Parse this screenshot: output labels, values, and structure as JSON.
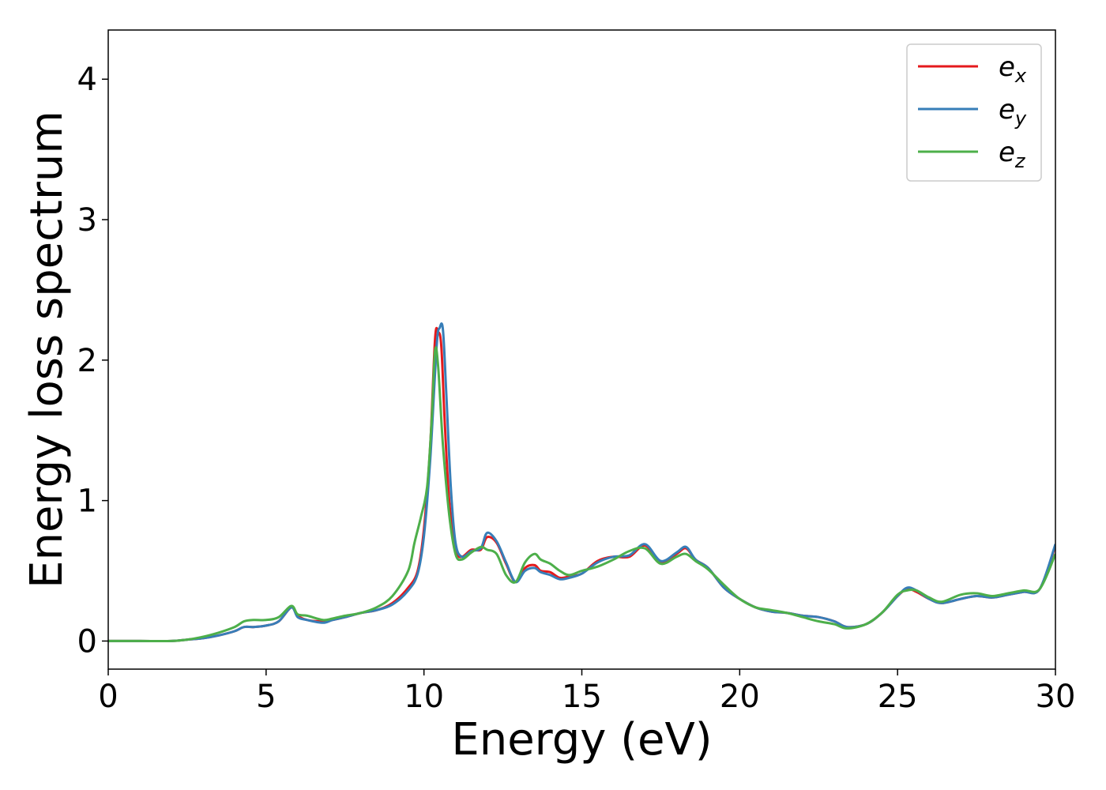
{
  "chart_data": {
    "type": "line",
    "title": "",
    "xlabel": "Energy (eV)",
    "ylabel": "Energy loss spectrum",
    "xlim": [
      0,
      30
    ],
    "ylim": [
      -0.2,
      4.35
    ],
    "xticks": [
      0,
      5,
      10,
      15,
      20,
      25,
      30
    ],
    "yticks": [
      0,
      1,
      2,
      3,
      4
    ],
    "grid": false,
    "legend_position": "top-right",
    "series": [
      {
        "name": "e",
        "subscript": "x",
        "color": "#e41a1c",
        "x": [
          0,
          1,
          2,
          2.5,
          3,
          3.5,
          4,
          4.3,
          4.6,
          5,
          5.4,
          5.8,
          6,
          6.3,
          6.8,
          7.1,
          7.5,
          8,
          8.5,
          9,
          9.5,
          9.8,
          10,
          10.2,
          10.35,
          10.45,
          10.55,
          10.65,
          10.8,
          11,
          11.2,
          11.5,
          11.8,
          12,
          12.3,
          12.6,
          12.9,
          13.2,
          13.5,
          13.7,
          14,
          14.3,
          14.6,
          15,
          15.5,
          16,
          16.5,
          17,
          17.5,
          18,
          18.3,
          18.6,
          19,
          19.5,
          20,
          20.5,
          21,
          21.5,
          22,
          22.5,
          23,
          23.4,
          24,
          24.5,
          25,
          25.3,
          25.6,
          26,
          26.4,
          27,
          27.5,
          28,
          28.5,
          29,
          29.5,
          30
        ],
        "y": [
          0,
          0,
          0,
          0.01,
          0.02,
          0.04,
          0.07,
          0.1,
          0.1,
          0.11,
          0.14,
          0.24,
          0.18,
          0.15,
          0.14,
          0.15,
          0.17,
          0.2,
          0.22,
          0.27,
          0.38,
          0.5,
          0.8,
          1.4,
          2.15,
          2.2,
          2.1,
          1.6,
          1.0,
          0.65,
          0.6,
          0.65,
          0.65,
          0.74,
          0.7,
          0.55,
          0.42,
          0.52,
          0.54,
          0.5,
          0.49,
          0.45,
          0.46,
          0.48,
          0.57,
          0.6,
          0.6,
          0.68,
          0.56,
          0.62,
          0.66,
          0.58,
          0.52,
          0.38,
          0.3,
          0.24,
          0.21,
          0.2,
          0.18,
          0.17,
          0.14,
          0.1,
          0.12,
          0.2,
          0.32,
          0.37,
          0.35,
          0.3,
          0.27,
          0.3,
          0.32,
          0.31,
          0.33,
          0.35,
          0.37,
          0.68
        ]
      },
      {
        "name": "e",
        "subscript": "y",
        "color": "#377eb8",
        "x": [
          0,
          1,
          2,
          2.5,
          3,
          3.5,
          4,
          4.3,
          4.6,
          5,
          5.4,
          5.8,
          6,
          6.3,
          6.8,
          7.1,
          7.5,
          8,
          8.5,
          9,
          9.5,
          9.8,
          10,
          10.2,
          10.4,
          10.5,
          10.6,
          10.7,
          10.85,
          11,
          11.2,
          11.5,
          11.8,
          12,
          12.3,
          12.6,
          12.9,
          13.2,
          13.5,
          13.7,
          14,
          14.3,
          14.6,
          15,
          15.5,
          16,
          16.5,
          17,
          17.5,
          18,
          18.3,
          18.6,
          19,
          19.5,
          20,
          20.5,
          21,
          21.5,
          22,
          22.5,
          23,
          23.4,
          24,
          24.5,
          25,
          25.3,
          25.6,
          26,
          26.4,
          27,
          27.5,
          28,
          28.5,
          29,
          29.5,
          30
        ],
        "y": [
          0,
          0,
          0,
          0.01,
          0.02,
          0.04,
          0.07,
          0.1,
          0.1,
          0.11,
          0.14,
          0.24,
          0.17,
          0.15,
          0.13,
          0.15,
          0.17,
          0.2,
          0.22,
          0.26,
          0.36,
          0.48,
          0.75,
          1.3,
          2.1,
          2.23,
          2.22,
          1.8,
          1.1,
          0.7,
          0.6,
          0.64,
          0.66,
          0.77,
          0.71,
          0.56,
          0.42,
          0.5,
          0.52,
          0.49,
          0.47,
          0.44,
          0.45,
          0.48,
          0.56,
          0.6,
          0.61,
          0.69,
          0.57,
          0.63,
          0.67,
          0.58,
          0.52,
          0.38,
          0.3,
          0.24,
          0.21,
          0.2,
          0.18,
          0.17,
          0.14,
          0.1,
          0.12,
          0.2,
          0.32,
          0.38,
          0.36,
          0.3,
          0.27,
          0.3,
          0.32,
          0.31,
          0.33,
          0.35,
          0.37,
          0.69
        ]
      },
      {
        "name": "e",
        "subscript": "z",
        "color": "#4daf4a",
        "x": [
          0,
          1,
          2,
          2.5,
          3,
          3.5,
          4,
          4.3,
          4.6,
          5,
          5.4,
          5.8,
          6,
          6.3,
          6.8,
          7.1,
          7.5,
          8,
          8.5,
          9,
          9.5,
          9.7,
          9.9,
          10.1,
          10.25,
          10.35,
          10.45,
          10.6,
          10.8,
          11,
          11.2,
          11.5,
          11.8,
          12,
          12.3,
          12.6,
          12.9,
          13.2,
          13.5,
          13.7,
          14,
          14.3,
          14.6,
          15,
          15.5,
          16,
          16.5,
          17,
          17.5,
          18,
          18.3,
          18.6,
          19,
          19.5,
          20,
          20.5,
          21,
          21.5,
          22,
          22.5,
          23,
          23.4,
          24,
          24.5,
          25,
          25.3,
          25.6,
          26,
          26.4,
          27,
          27.5,
          28,
          28.5,
          29,
          29.5,
          30
        ],
        "y": [
          0,
          0,
          0,
          0.01,
          0.03,
          0.06,
          0.1,
          0.14,
          0.15,
          0.15,
          0.17,
          0.25,
          0.19,
          0.18,
          0.15,
          0.16,
          0.18,
          0.2,
          0.24,
          0.32,
          0.5,
          0.7,
          0.88,
          1.1,
          1.6,
          2.07,
          1.95,
          1.4,
          0.9,
          0.62,
          0.58,
          0.63,
          0.67,
          0.65,
          0.62,
          0.47,
          0.42,
          0.56,
          0.62,
          0.58,
          0.55,
          0.5,
          0.47,
          0.5,
          0.53,
          0.58,
          0.64,
          0.66,
          0.55,
          0.6,
          0.62,
          0.57,
          0.51,
          0.4,
          0.3,
          0.24,
          0.22,
          0.2,
          0.17,
          0.14,
          0.12,
          0.09,
          0.12,
          0.2,
          0.33,
          0.36,
          0.36,
          0.31,
          0.28,
          0.33,
          0.34,
          0.32,
          0.34,
          0.36,
          0.37,
          0.62
        ]
      }
    ]
  }
}
